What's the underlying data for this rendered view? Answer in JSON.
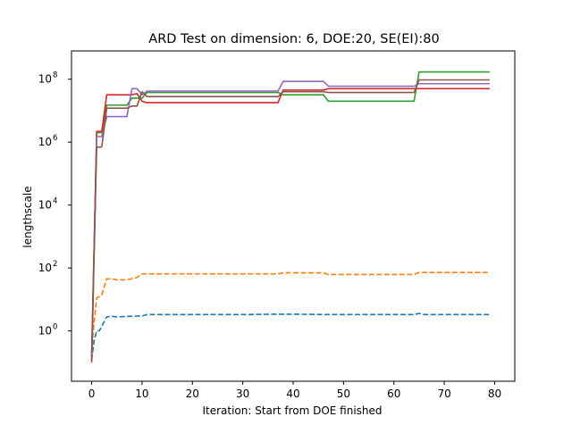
{
  "chart_data": {
    "type": "line",
    "title": "ARD Test on dimension: 6, DOE:20, SE(EI):80",
    "xlabel": "Iteration: Start from DOE finished",
    "ylabel": "lengthscale",
    "xlim": [
      -4,
      84
    ],
    "xticks": [
      "0",
      "10",
      "20",
      "30",
      "40",
      "50",
      "60",
      "70",
      "80"
    ],
    "yscale": "log",
    "ylim_log10": [
      -1.6,
      8.9
    ],
    "yticks": [
      {
        "base": "10",
        "exp": "0"
      },
      {
        "base": "10",
        "exp": "2"
      },
      {
        "base": "10",
        "exp": "4"
      },
      {
        "base": "10",
        "exp": "6"
      },
      {
        "base": "10",
        "exp": "8"
      }
    ],
    "grid": false,
    "series": [
      {
        "color": "#1f77b4",
        "dash": "dashed",
        "points": [
          [
            0,
            0.12
          ],
          [
            0.5,
            0.5
          ],
          [
            1,
            1.0
          ],
          [
            1.5,
            1.0
          ],
          [
            2,
            1.4
          ],
          [
            3,
            2.8
          ],
          [
            4,
            2.9
          ],
          [
            5,
            2.8
          ],
          [
            10,
            3.0
          ],
          [
            11,
            3.3
          ],
          [
            20,
            3.3
          ],
          [
            30,
            3.3
          ],
          [
            37,
            3.4
          ],
          [
            40,
            3.4
          ],
          [
            47,
            3.3
          ],
          [
            60,
            3.3
          ],
          [
            64,
            3.3
          ],
          [
            65,
            3.6
          ],
          [
            66,
            3.3
          ],
          [
            79,
            3.3
          ]
        ]
      },
      {
        "color": "#ff7f0e",
        "dash": "dashed",
        "points": [
          [
            0,
            0.2
          ],
          [
            0.5,
            2.0
          ],
          [
            1,
            11
          ],
          [
            2,
            14
          ],
          [
            3,
            45
          ],
          [
            4,
            45
          ],
          [
            5,
            42
          ],
          [
            7,
            42
          ],
          [
            9,
            50
          ],
          [
            10,
            65
          ],
          [
            11,
            65
          ],
          [
            37,
            65
          ],
          [
            38,
            70
          ],
          [
            46,
            70
          ],
          [
            47,
            62
          ],
          [
            64,
            62
          ],
          [
            65,
            72
          ],
          [
            79,
            72
          ]
        ]
      },
      {
        "color": "#2ca02c",
        "dash": "solid",
        "points": [
          [
            0,
            0.2
          ],
          [
            1,
            2000000
          ],
          [
            2,
            2000000
          ],
          [
            3,
            15000000
          ],
          [
            7,
            15000000
          ],
          [
            8,
            25000000
          ],
          [
            10,
            25000000
          ],
          [
            11,
            38000000
          ],
          [
            37,
            38000000
          ],
          [
            38,
            32000000
          ],
          [
            46,
            32000000
          ],
          [
            47,
            20000000
          ],
          [
            64,
            20000000
          ],
          [
            65,
            170000000
          ],
          [
            79,
            170000000
          ]
        ]
      },
      {
        "color": "#d62728",
        "dash": "solid",
        "points": [
          [
            0,
            0.1
          ],
          [
            1,
            2200000
          ],
          [
            2,
            2200000
          ],
          [
            3,
            32000000
          ],
          [
            8,
            32000000
          ],
          [
            9,
            35000000
          ],
          [
            10,
            20000000
          ],
          [
            11,
            18000000
          ],
          [
            37,
            18000000
          ],
          [
            38,
            45000000
          ],
          [
            46,
            45000000
          ],
          [
            47,
            50000000
          ],
          [
            79,
            50000000
          ]
        ]
      },
      {
        "color": "#9467bd",
        "dash": "solid",
        "points": [
          [
            0,
            0.15
          ],
          [
            1,
            1500000
          ],
          [
            2,
            1500000
          ],
          [
            3,
            6500000
          ],
          [
            7,
            6500000
          ],
          [
            8,
            50000000
          ],
          [
            9,
            50000000
          ],
          [
            10,
            32000000
          ],
          [
            11,
            42000000
          ],
          [
            37,
            42000000
          ],
          [
            38,
            85000000
          ],
          [
            46,
            85000000
          ],
          [
            47,
            60000000
          ],
          [
            64,
            60000000
          ],
          [
            65,
            72000000
          ],
          [
            79,
            72000000
          ]
        ]
      },
      {
        "color": "#8c564b",
        "dash": "solid",
        "points": [
          [
            0,
            0.12
          ],
          [
            1,
            700000
          ],
          [
            2,
            700000
          ],
          [
            3,
            12000000
          ],
          [
            7,
            12000000
          ],
          [
            8,
            14000000
          ],
          [
            9,
            14000000
          ],
          [
            10,
            40000000
          ],
          [
            11,
            28000000
          ],
          [
            37,
            28000000
          ],
          [
            38,
            40000000
          ],
          [
            46,
            40000000
          ],
          [
            47,
            38000000
          ],
          [
            64,
            38000000
          ],
          [
            65,
            95000000
          ],
          [
            79,
            95000000
          ]
        ]
      }
    ]
  }
}
